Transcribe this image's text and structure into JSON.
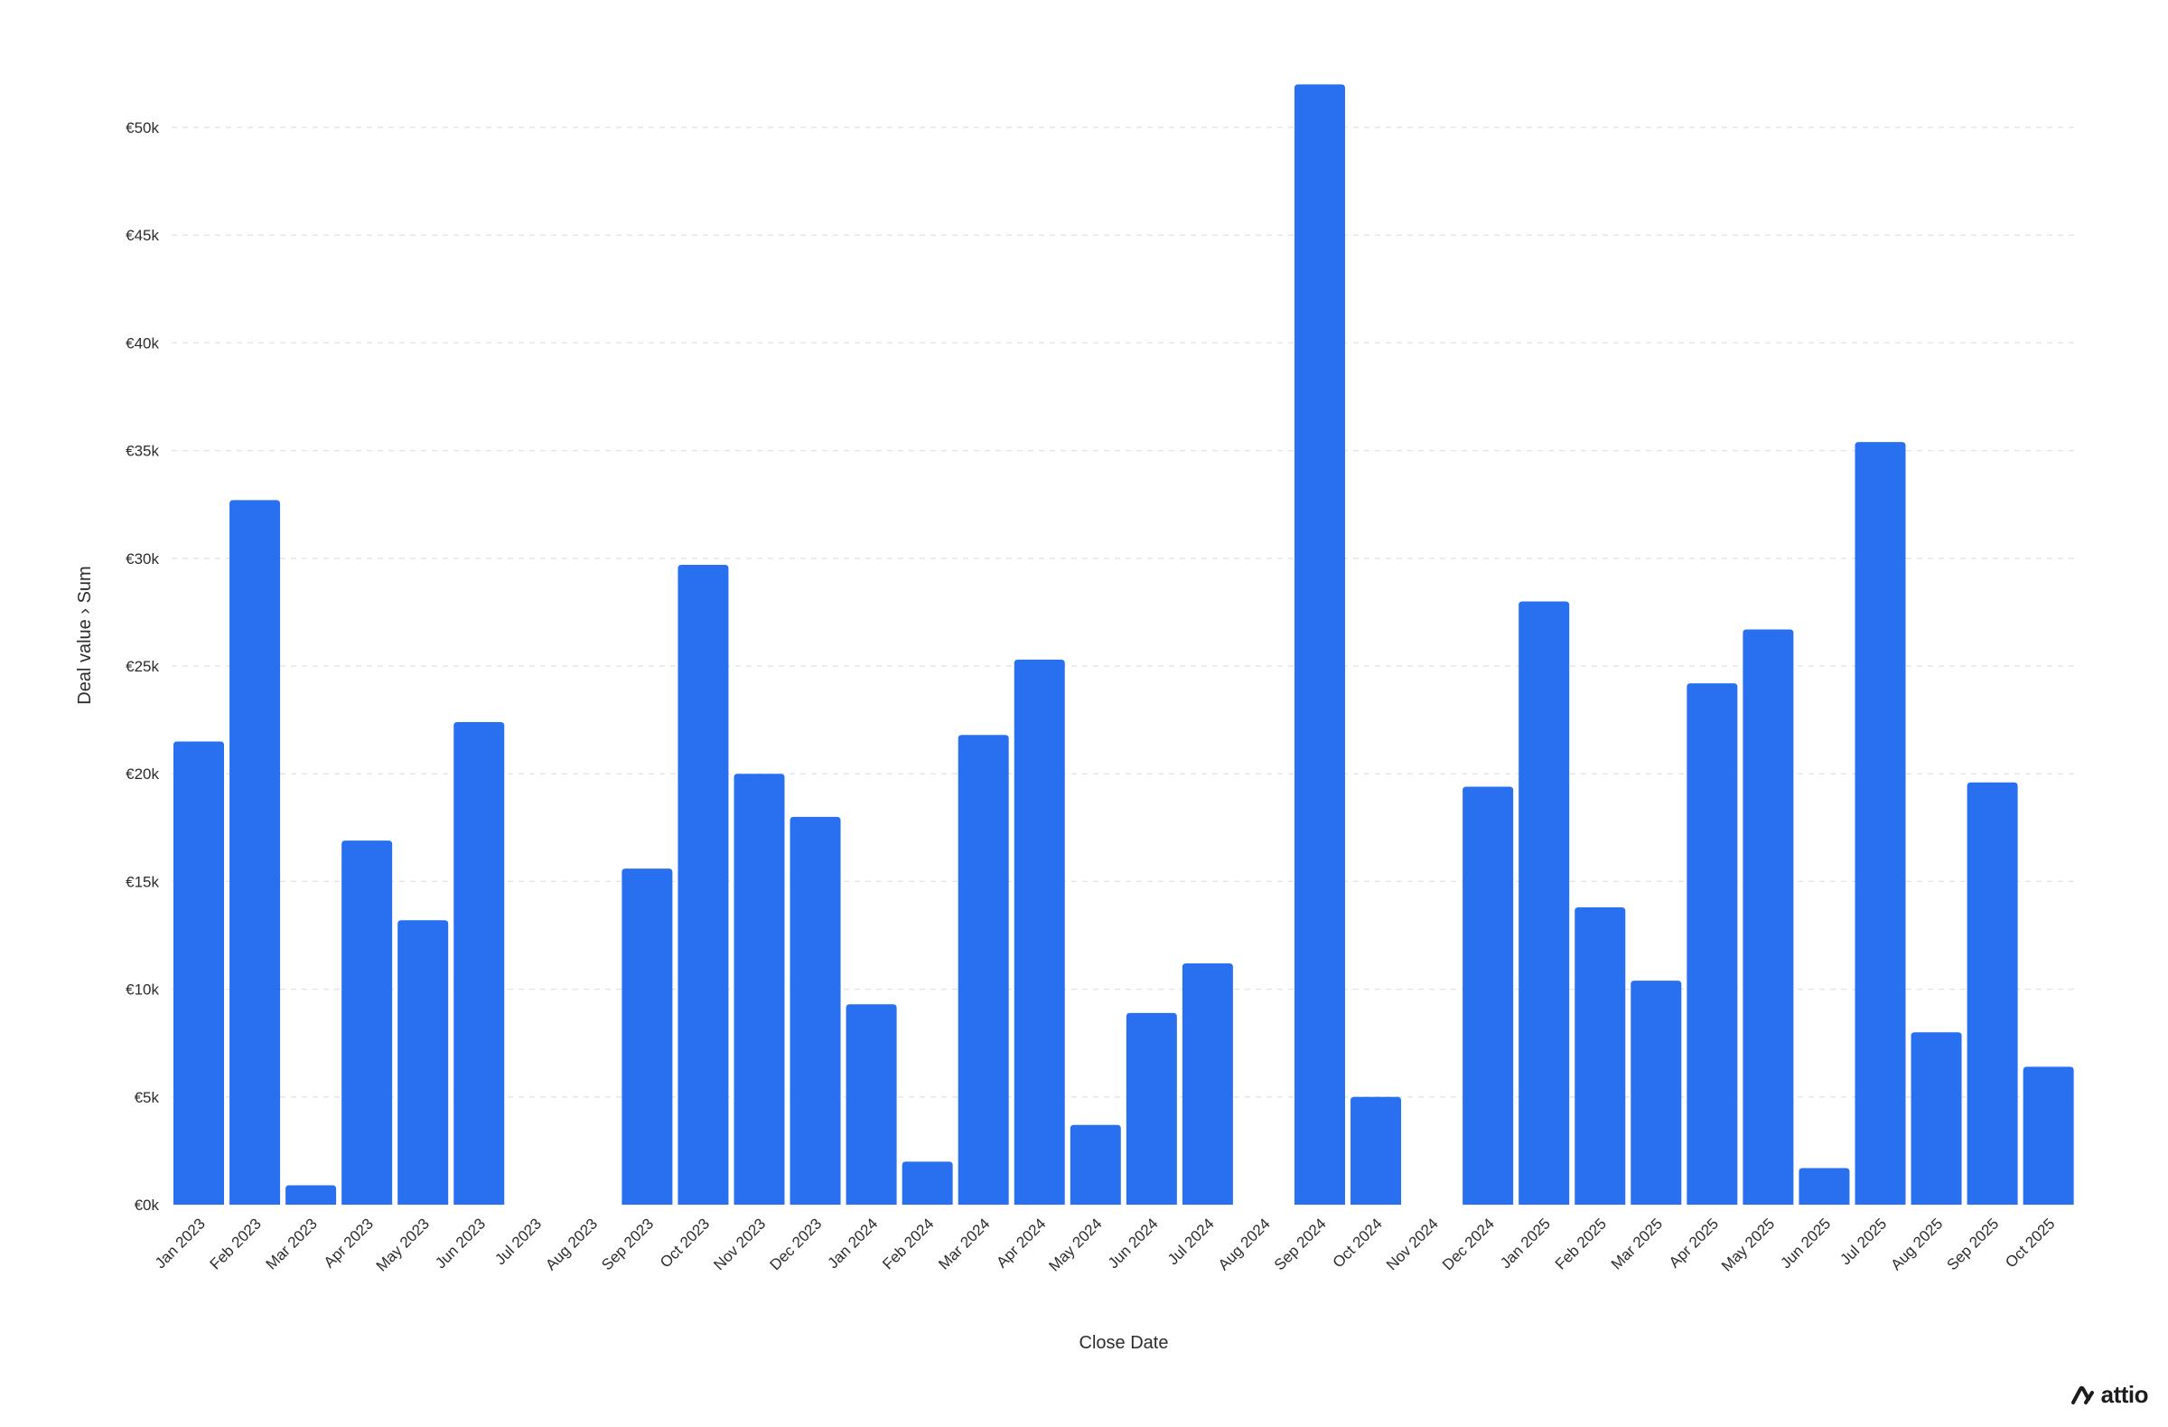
{
  "chart_data": {
    "type": "bar",
    "xlabel": "Close Date",
    "ylabel": "Deal value › Sum",
    "ylim": [
      0,
      52000
    ],
    "yticks": [
      "€0k",
      "€5k",
      "€10k",
      "€15k",
      "€20k",
      "€25k",
      "€30k",
      "€35k",
      "€40k",
      "€45k",
      "€50k"
    ],
    "grid": true,
    "bar_color": "#2970F0",
    "categories": [
      "Jan 2023",
      "Feb 2023",
      "Mar 2023",
      "Apr 2023",
      "May 2023",
      "Jun 2023",
      "Jul 2023",
      "Aug 2023",
      "Sep 2023",
      "Oct 2023",
      "Nov 2023",
      "Dec 2023",
      "Jan 2024",
      "Feb 2024",
      "Mar 2024",
      "Apr 2024",
      "May 2024",
      "Jun 2024",
      "Jul 2024",
      "Aug 2024",
      "Sep 2024",
      "Oct 2024",
      "Nov 2024",
      "Dec 2024",
      "Jan 2025",
      "Feb 2025",
      "Mar 2025",
      "Apr 2025",
      "May 2025",
      "Jun 2025",
      "Jul 2025",
      "Aug 2025",
      "Sep 2025",
      "Oct 2025"
    ],
    "values": [
      21500,
      32700,
      900,
      16900,
      13200,
      22400,
      0,
      0,
      15600,
      29700,
      20000,
      18000,
      9300,
      2000,
      21800,
      25300,
      3700,
      8900,
      11200,
      0,
      52000,
      5000,
      0,
      19400,
      28000,
      13800,
      10400,
      24200,
      26700,
      1700,
      35400,
      8000,
      19600,
      6400
    ]
  },
  "brand": {
    "name": "attio",
    "icon": "attio-logo-icon"
  }
}
